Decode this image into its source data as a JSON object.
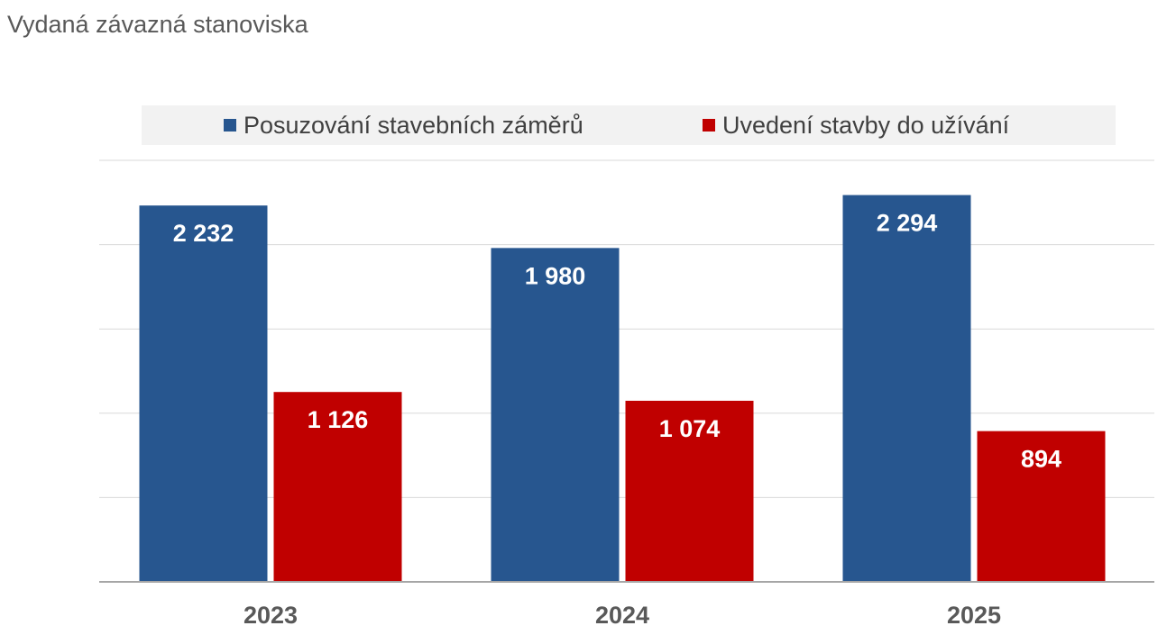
{
  "chart_data": {
    "type": "bar",
    "title": "Vydaná závazná stanoviska",
    "categories": [
      "2023",
      "2024",
      "2025"
    ],
    "series": [
      {
        "name": "Posuzování stavebních záměrů",
        "color": "#27568f",
        "values": [
          2232,
          1980,
          2294
        ],
        "labels": [
          "2 232",
          "1 980",
          "2 294"
        ]
      },
      {
        "name": "Uvedení stavby do užívání",
        "color": "#c00000",
        "values": [
          1126,
          1074,
          894
        ],
        "labels": [
          "1 126",
          "1 074",
          "894"
        ]
      }
    ],
    "xlabel": "",
    "ylabel": "",
    "ylim": [
      0,
      2500
    ],
    "ytick_step": 500,
    "grid": true,
    "legend_position": "top"
  }
}
